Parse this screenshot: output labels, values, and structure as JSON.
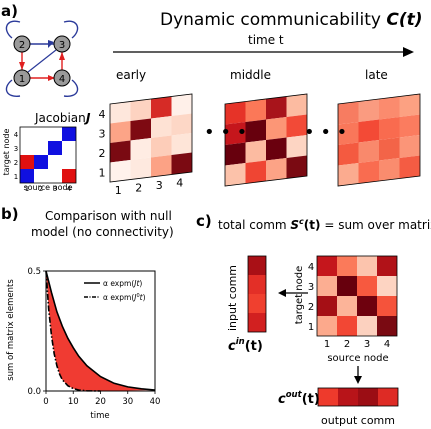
{
  "panel_a": {
    "label": "a)",
    "title_prefix": "Dynamic communicability ",
    "title_symbol": "C(t)",
    "time_label": "time t",
    "stages": [
      "early",
      "middle",
      "late"
    ],
    "jacobian_prefix": "Jacobian ",
    "jacobian_symbol": "J",
    "jacobian_xlabel": "source node",
    "jacobian_ylabel": "target node",
    "jacobian_ticks": [
      "1",
      "2",
      "3",
      "4"
    ],
    "graph_node_labels": [
      "1",
      "2",
      "3",
      "4"
    ],
    "matrix_row_ticks": [
      "4",
      "3",
      "2",
      "1"
    ],
    "matrix_col_ticks": [
      "1",
      "2",
      "3",
      "4"
    ],
    "ellipsis": "• • •",
    "jacobian_matrix": [
      [
        "white",
        "white",
        "white",
        "blue"
      ],
      [
        "white",
        "white",
        "blue",
        "white"
      ],
      [
        "red",
        "blue",
        "white",
        "white"
      ],
      [
        "blue",
        "white",
        "white",
        "red"
      ]
    ],
    "early_matrix": [
      [
        "#fee7dc",
        "#fdd3c1",
        "#d62b26",
        "#fff0e9"
      ],
      [
        "#fca487",
        "#7e0a12",
        "#fee2d4",
        "#fdd7c6"
      ],
      [
        "#7a0a12",
        "#ffece3",
        "#fdcdb9",
        "#fee5d8"
      ],
      [
        "#fff2ec",
        "#fee9df",
        "#fca285",
        "#7b0a12"
      ]
    ],
    "middle_matrix": [
      [
        "#e63328",
        "#fb7858",
        "#a8141b",
        "#fcbba1"
      ],
      [
        "#c5161c",
        "#67000d",
        "#fc9676",
        "#f24a37"
      ],
      [
        "#67000d",
        "#fcbba1",
        "#6a000e",
        "#fdd5c3"
      ],
      [
        "#fcc2aa",
        "#ef4533",
        "#fca386",
        "#7a0a12"
      ]
    ],
    "late_matrix": [
      [
        "#f77c61",
        "#fa9b80",
        "#fb8b6e",
        "#fca182"
      ],
      [
        "#f9775a",
        "#f34a36",
        "#f96b4f",
        "#fb7c5f"
      ],
      [
        "#f45a40",
        "#f9896c",
        "#f36448",
        "#fb9578"
      ],
      [
        "#fbab8f",
        "#f96c50",
        "#fa8c6e",
        "#f45c43"
      ]
    ]
  },
  "panel_b": {
    "label": "b)",
    "title_line1": "Comparison with null",
    "title_line2": "model (no connectivity)",
    "legend": [
      {
        "prefix": "α expm(",
        "sym": "Jt",
        "suffix": ")"
      },
      {
        "prefix": "α expm(",
        "sym": "J",
        "sup": "0",
        "sym2": "t",
        "suffix": ")"
      }
    ],
    "ylabel": "sum of matrix elements",
    "xlabel": "time",
    "yticks": [
      "0.5",
      "0.0"
    ],
    "xticks": [
      "0",
      "10",
      "20",
      "30",
      "40"
    ],
    "fill_color": "#f03b32"
  },
  "chart_data": {
    "type": "line",
    "xlabel": "time",
    "ylabel": "sum of matrix elements",
    "xlim": [
      0,
      40
    ],
    "ylim": [
      0.0,
      0.5
    ],
    "series": [
      {
        "name": "α expm(Jt)",
        "style": "solid",
        "x": [
          0,
          2,
          4,
          6,
          8,
          10,
          12,
          15,
          20,
          25,
          30,
          35,
          40
        ],
        "y": [
          0.5,
          0.41,
          0.33,
          0.27,
          0.22,
          0.18,
          0.145,
          0.105,
          0.06,
          0.032,
          0.017,
          0.009,
          0.004
        ]
      },
      {
        "name": "α expm(J⁰t)",
        "style": "dashdot",
        "x": [
          0,
          1,
          2,
          3,
          4,
          5,
          6,
          8,
          10,
          12,
          15,
          20
        ],
        "y": [
          0.5,
          0.34,
          0.23,
          0.155,
          0.105,
          0.07,
          0.047,
          0.022,
          0.01,
          0.004,
          0.001,
          0.0
        ]
      }
    ]
  },
  "panel_c": {
    "label": "c)",
    "total_prefix": "total comm ",
    "total_sym": "S",
    "total_sup": "c",
    "total_arg": "(t)",
    "total_suffix": " = sum over matrix",
    "input_label": "input comm",
    "output_label": "output comm",
    "cin_sym": "c",
    "cin_sup": "in",
    "cin_arg": "(t)",
    "cout_sym": "c",
    "cout_sup": "out",
    "cout_arg": "(t)",
    "xlabel": "source node",
    "ylabel": "target node",
    "row_ticks": [
      "4",
      "3",
      "2",
      "1"
    ],
    "col_ticks": [
      "1",
      "2",
      "3",
      "4"
    ],
    "matrix": [
      [
        "#c5161c",
        "#fb7a5a",
        "#fcc4ad",
        "#b11218"
      ],
      [
        "#fcae92",
        "#67000d",
        "#f7593f",
        "#fdd4c2"
      ],
      [
        "#a50f15",
        "#fcb499",
        "#6e010e",
        "#f5533b"
      ],
      [
        "#fca98c",
        "#f24734",
        "#fcd1bf",
        "#7a0a12"
      ]
    ],
    "cin_colors": [
      "#a91016",
      "#e32f27",
      "#f0402f",
      "#d22020"
    ],
    "cout_colors": [
      "#ee3a2c",
      "#b81419",
      "#9b0d14",
      "#de2b25"
    ]
  }
}
